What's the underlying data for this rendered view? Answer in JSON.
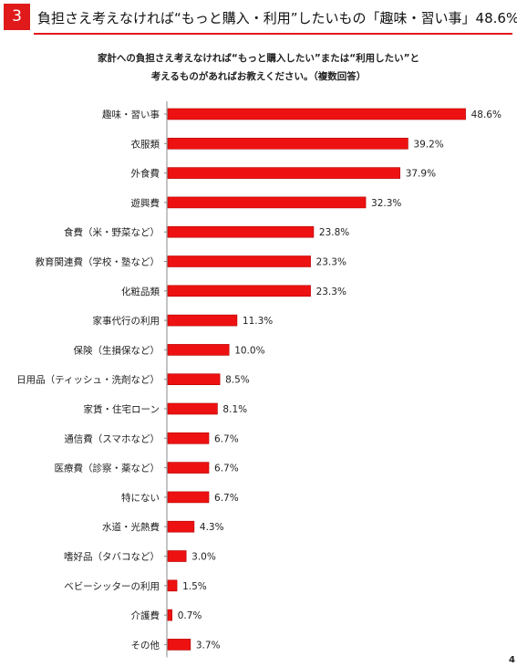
{
  "header": {
    "number": "3",
    "title": "負担さえ考えなければ“もっと購入・利用”したいもの「趣味・習い事」48.6%"
  },
  "question": {
    "line1": "家計への負担さえ考えなければ“もっと購入したい”または“利用したい”と",
    "line2": "考えるものがあればお教えください。（複数回答）"
  },
  "page_number": "4",
  "colors": {
    "accent": "#e01a1a",
    "bar": "#ee1111"
  },
  "chart_data": {
    "type": "bar",
    "orientation": "horizontal",
    "unit": "%",
    "xlim": [
      0,
      50
    ],
    "grid": false,
    "categories": [
      "趣味・習い事",
      "衣服類",
      "外食費",
      "遊興費",
      "食費（米・野菜など）",
      "教育関連費（学校・塾など）",
      "化粧品類",
      "家事代行の利用",
      "保険（生損保など）",
      "日用品（ティッシュ・洗剤など）",
      "家賃・住宅ローン",
      "通信費（スマホなど）",
      "医療費（診察・薬など）",
      "特にない",
      "水道・光熱費",
      "嗜好品（タバコなど）",
      "ベビーシッターの利用",
      "介護費",
      "その他"
    ],
    "values": [
      48.6,
      39.2,
      37.9,
      32.3,
      23.8,
      23.3,
      23.3,
      11.3,
      10.0,
      8.5,
      8.1,
      6.7,
      6.7,
      6.7,
      4.3,
      3.0,
      1.5,
      0.7,
      3.7
    ],
    "value_labels": [
      "48.6%",
      "39.2%",
      "37.9%",
      "32.3%",
      "23.8%",
      "23.3%",
      "23.3%",
      "11.3%",
      "10.0%",
      "8.5%",
      "8.1%",
      "6.7%",
      "6.7%",
      "6.7%",
      "4.3%",
      "3.0%",
      "1.5%",
      "0.7%",
      "3.7%"
    ]
  }
}
